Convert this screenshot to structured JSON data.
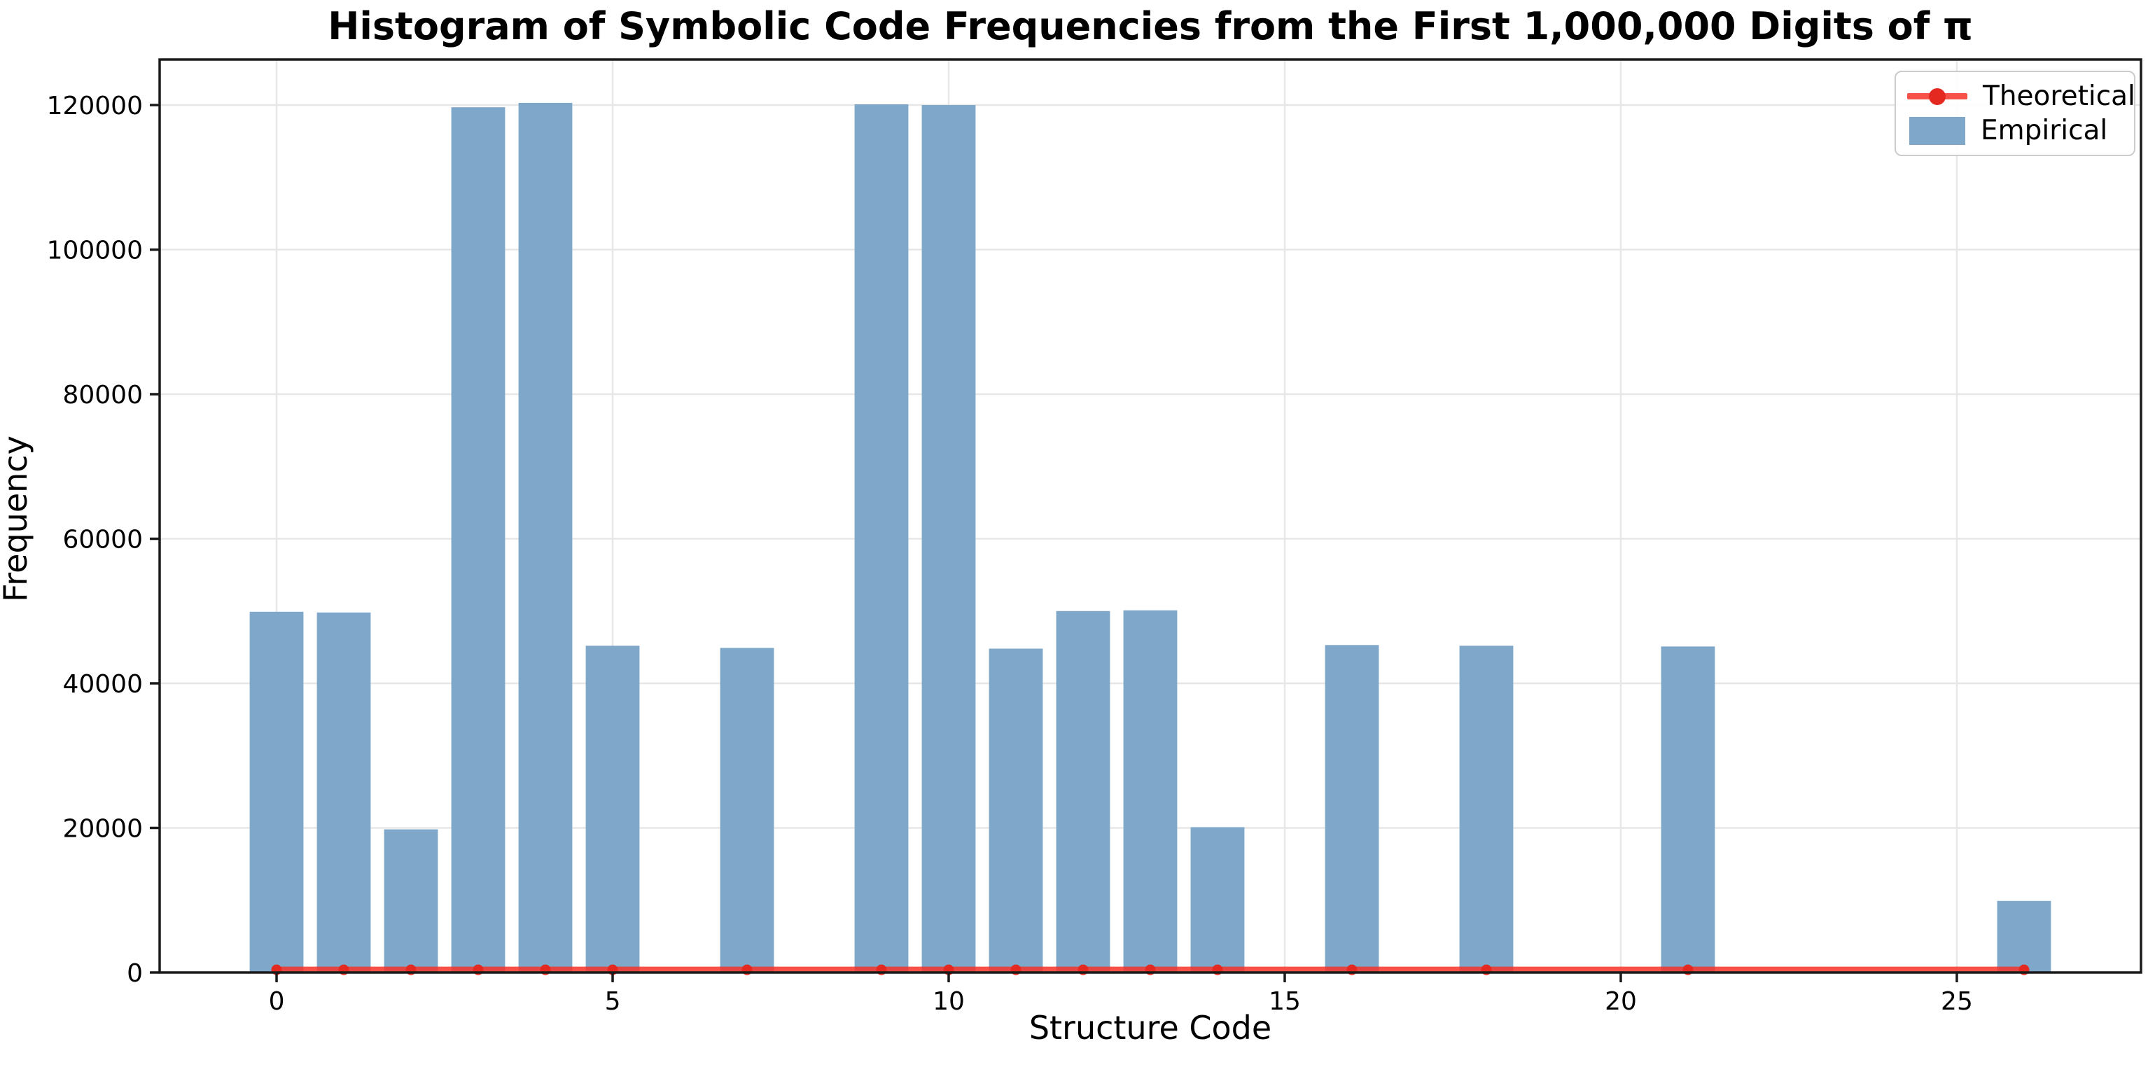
{
  "figure": {
    "background": "#ffffff",
    "text_color": "#000000",
    "spine_color": "#1a1a1a",
    "grid_color": "#e7e7e7"
  },
  "chart_data": {
    "type": "bar",
    "title": "Histogram of Symbolic Code Frequencies from the First 1,000,000 Digits of π",
    "xlabel": "Structure Code",
    "ylabel": "Frequency",
    "xlim": [
      -1.74,
      27.74
    ],
    "ylim": [
      0,
      126300
    ],
    "x_ticks": [
      0,
      5,
      10,
      15,
      20,
      25
    ],
    "y_ticks": [
      0,
      20000,
      40000,
      60000,
      80000,
      100000,
      120000
    ],
    "grid": true,
    "legend_position": "upper right",
    "categories": [
      0,
      1,
      2,
      3,
      4,
      5,
      6,
      7,
      8,
      9,
      10,
      11,
      12,
      13,
      14,
      15,
      16,
      17,
      18,
      19,
      20,
      21,
      22,
      23,
      24,
      25,
      26
    ],
    "series": [
      {
        "name": "Empirical",
        "type": "bar",
        "color": "#7ea7ca",
        "bar_width": 0.8,
        "values": [
          49900,
          49800,
          19800,
          119700,
          120300,
          45200,
          0,
          44900,
          0,
          120100,
          120000,
          44800,
          50000,
          50100,
          20100,
          0,
          45300,
          0,
          45200,
          0,
          0,
          45100,
          0,
          0,
          0,
          0,
          9900
        ]
      },
      {
        "name": "Theoretical",
        "type": "line",
        "color": "#f43428",
        "marker": "o",
        "marker_color": "#e42a20",
        "x": [
          0,
          1,
          2,
          3,
          4,
          5,
          7,
          9,
          10,
          11,
          12,
          13,
          14,
          16,
          18,
          21,
          26
        ],
        "values": [
          370,
          370,
          370,
          370,
          370,
          370,
          370,
          370,
          370,
          370,
          370,
          370,
          370,
          370,
          370,
          370,
          370
        ]
      }
    ],
    "legend": [
      {
        "label": "Theoretical",
        "swatch": "line-with-marker"
      },
      {
        "label": "Empirical",
        "swatch": "patch"
      }
    ]
  }
}
